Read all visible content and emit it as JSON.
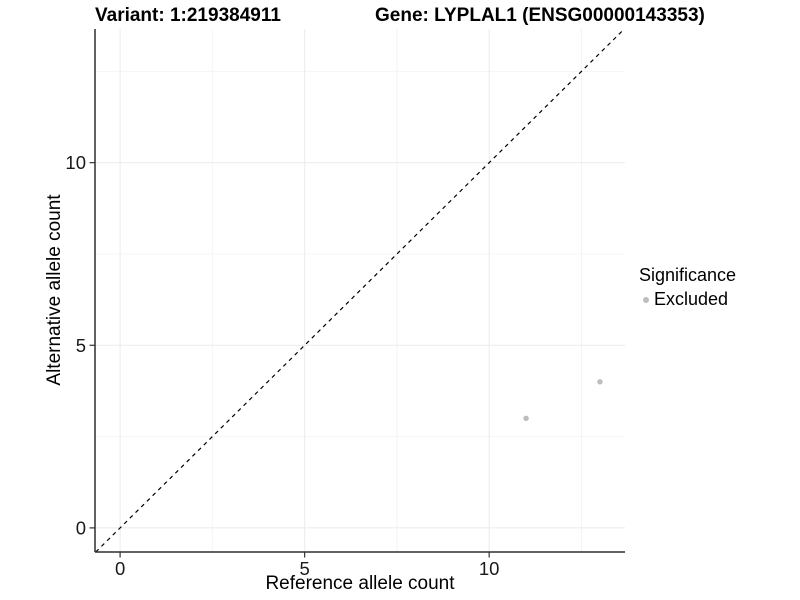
{
  "chart_data": {
    "type": "scatter",
    "title_left": "Variant: 1:219384911",
    "title_right": "Gene: LYPLAL1 (ENSG00000143353)",
    "xlabel": "Reference allele count",
    "ylabel": "Alternative allele count",
    "xlim": [
      -0.68,
      13.68
    ],
    "ylim": [
      -0.66,
      13.66
    ],
    "xticks": [
      0,
      5,
      10
    ],
    "yticks": [
      0,
      5,
      10
    ],
    "xticks_minor": [
      2.5,
      7.5,
      12.5
    ],
    "yticks_minor": [
      2.5,
      7.5,
      12.5
    ],
    "grid": "major+minor",
    "reference_line": {
      "type": "identity y=x",
      "style": "dashed",
      "color": "#000000"
    },
    "series": [
      {
        "name": "Excluded",
        "color": "#bdbdbd",
        "marker": "circle",
        "points": [
          [
            11,
            3
          ],
          [
            13,
            4
          ]
        ]
      }
    ],
    "legend": {
      "title": "Significance",
      "position": "right",
      "entries": [
        {
          "label": "Excluded",
          "color": "#bdbdbd"
        }
      ]
    }
  },
  "colors": {
    "background": "#ffffff",
    "axis_line": "#2e2e2e",
    "tick_mark": "#333333",
    "tick_label": "#1a1a1a",
    "grid_major": "#ebebeb",
    "grid_minor": "#f4f4f4",
    "point": "#bdbdbd",
    "title_text": "#000000"
  }
}
